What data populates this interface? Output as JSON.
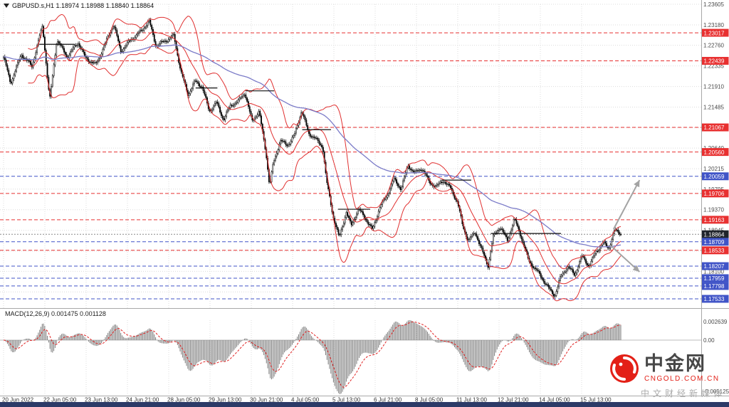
{
  "header": {
    "symbol_ohlc": "GBPUSD.s,H1 1.18974 1.18988 1.18840 1.18864"
  },
  "macd_panel": {
    "label_line": "MACD(12,26,9) 0.001475 0.001128",
    "axis_ticks": {
      "max": "0.002639",
      "zero": "0.00",
      "min": "-0.005125"
    }
  },
  "logo": {
    "title": "中金网",
    "domain": "CNGOLD.COM.CN",
    "tagline": "中文财经新媒体"
  },
  "chart_data": {
    "type": "candlestick",
    "title": "GBPUSD.s,H1",
    "timeframe": "H1",
    "ohlc": {
      "open": "1.18974",
      "high": "1.18988",
      "low": "1.18840",
      "close": "1.18864"
    },
    "x_tick_labels": [
      "20 Jun 2022",
      "22 Jun 05:00",
      "23 Jun 13:00",
      "24 Jun 21:00",
      "28 Jun 05:00",
      "29 Jun 13:00",
      "30 Jun 21:00",
      "4 Jul 05:00",
      "5 Jul 13:00",
      "6 Jul 21:00",
      "8 Jul 05:00",
      "11 Jul 13:00",
      "12 Jul 21:00",
      "14 Jul 05:00",
      "15 Jul 13:00"
    ],
    "y_axis": {
      "price_max": 1.23605,
      "price_min": 1.174,
      "grid_prices": [
        1.23605,
        1.2318,
        1.2276,
        1.22335,
        1.2191,
        1.21485,
        1.2106,
        1.2064,
        1.20215,
        1.19795,
        1.1937,
        1.18945,
        1.1852,
        1.181,
        1.17675
      ],
      "labeled": [
        "1.23605",
        "1.23180",
        "1.22760",
        "1.22335",
        "1.21910",
        "1.21485",
        "1.20640",
        "1.20215",
        "1.19795",
        "1.19370",
        "1.18945",
        "1.18100"
      ]
    },
    "levels": [
      {
        "price": 1.23017,
        "label": "1.23017",
        "color": "#e83030",
        "kind": "resistance"
      },
      {
        "price": 1.22439,
        "label": "1.22439",
        "color": "#e83030",
        "kind": "resistance"
      },
      {
        "price": 1.21067,
        "label": "1.21067",
        "color": "#e83030",
        "kind": "resistance"
      },
      {
        "price": 1.2056,
        "label": "1.20560",
        "color": "#e83030",
        "kind": "resistance"
      },
      {
        "price": 1.20059,
        "label": "1.20059",
        "color": "#4054c7",
        "kind": "support"
      },
      {
        "price": 1.19706,
        "label": "1.19706",
        "color": "#e83030",
        "kind": "resistance"
      },
      {
        "price": 1.19163,
        "label": "1.19163",
        "color": "#e83030",
        "kind": "resistance"
      },
      {
        "price": 1.18864,
        "label": "1.18864",
        "color": "#20242b",
        "kind": "bid"
      },
      {
        "price": 1.18709,
        "label": "1.18709",
        "color": "#4054c7",
        "kind": "support"
      },
      {
        "price": 1.18533,
        "label": "1.18533",
        "color": "#e83030",
        "kind": "resistance"
      },
      {
        "price": 1.18207,
        "label": "1.18207",
        "color": "#4054c7",
        "kind": "support"
      },
      {
        "price": 1.17959,
        "label": "1.17959",
        "color": "#4054c7",
        "kind": "support"
      },
      {
        "price": 1.17798,
        "label": "1.17798",
        "color": "#4054c7",
        "kind": "support"
      },
      {
        "price": 1.17533,
        "label": "1.17533",
        "color": "#4054c7",
        "kind": "support"
      }
    ],
    "candles_count": 480,
    "price_path": [
      [
        0.0,
        1.225
      ],
      [
        0.0115,
        1.2198
      ],
      [
        0.0287,
        1.226
      ],
      [
        0.046,
        1.2232
      ],
      [
        0.0632,
        1.2315
      ],
      [
        0.0747,
        1.2162
      ],
      [
        0.0862,
        1.229
      ],
      [
        0.1034,
        1.2252
      ],
      [
        0.1207,
        1.228
      ],
      [
        0.1322,
        1.225
      ],
      [
        0.1494,
        1.2238
      ],
      [
        0.1667,
        1.2285
      ],
      [
        0.1782,
        1.2318
      ],
      [
        0.1897,
        1.2262
      ],
      [
        0.2069,
        1.229
      ],
      [
        0.2241,
        1.2308
      ],
      [
        0.2356,
        1.2325
      ],
      [
        0.2471,
        1.2272
      ],
      [
        0.2644,
        1.2288
      ],
      [
        0.2759,
        1.2298
      ],
      [
        0.2874,
        1.2222
      ],
      [
        0.2989,
        1.2172
      ],
      [
        0.3103,
        1.22
      ],
      [
        0.3218,
        1.219
      ],
      [
        0.3333,
        1.2142
      ],
      [
        0.3448,
        1.216
      ],
      [
        0.3563,
        1.2122
      ],
      [
        0.3678,
        1.215
      ],
      [
        0.3793,
        1.2158
      ],
      [
        0.3908,
        1.218
      ],
      [
        0.4023,
        1.2122
      ],
      [
        0.4138,
        1.214
      ],
      [
        0.4253,
        1.2052
      ],
      [
        0.431,
        1.1982
      ],
      [
        0.4368,
        1.203
      ],
      [
        0.4483,
        1.208
      ],
      [
        0.4598,
        1.2072
      ],
      [
        0.4713,
        1.2092
      ],
      [
        0.4828,
        1.214
      ],
      [
        0.4943,
        1.2092
      ],
      [
        0.5057,
        1.2082
      ],
      [
        0.5172,
        1.2068
      ],
      [
        0.523,
        1.2
      ],
      [
        0.5345,
        1.1922
      ],
      [
        0.5437,
        1.1878
      ],
      [
        0.5552,
        1.193
      ],
      [
        0.5632,
        1.1902
      ],
      [
        0.5747,
        1.194
      ],
      [
        0.5862,
        1.1922
      ],
      [
        0.5977,
        1.1896
      ],
      [
        0.6092,
        1.194
      ],
      [
        0.6207,
        1.1962
      ],
      [
        0.6322,
        1.2
      ],
      [
        0.6437,
        1.1982
      ],
      [
        0.6552,
        1.203
      ],
      [
        0.6667,
        1.2012
      ],
      [
        0.6782,
        1.202
      ],
      [
        0.6897,
        1.1992
      ],
      [
        0.7011,
        1.1986
      ],
      [
        0.7126,
        1.2
      ],
      [
        0.7241,
        1.1982
      ],
      [
        0.7356,
        1.195
      ],
      [
        0.7437,
        1.1902
      ],
      [
        0.7529,
        1.1872
      ],
      [
        0.7644,
        1.1892
      ],
      [
        0.7759,
        1.1852
      ],
      [
        0.7851,
        1.1822
      ],
      [
        0.7931,
        1.188
      ],
      [
        0.8046,
        1.19
      ],
      [
        0.8161,
        1.1872
      ],
      [
        0.8276,
        1.192
      ],
      [
        0.8391,
        1.1882
      ],
      [
        0.8506,
        1.1832
      ],
      [
        0.8621,
        1.1812
      ],
      [
        0.8736,
        1.1792
      ],
      [
        0.8851,
        1.1772
      ],
      [
        0.8931,
        1.1762
      ],
      [
        0.9023,
        1.18
      ],
      [
        0.9138,
        1.182
      ],
      [
        0.9253,
        1.18
      ],
      [
        0.9368,
        1.184
      ],
      [
        0.9483,
        1.1822
      ],
      [
        0.9598,
        1.1852
      ],
      [
        0.9713,
        1.187
      ],
      [
        0.9805,
        1.1856
      ],
      [
        0.9897,
        1.1892
      ],
      [
        1.0,
        1.18864
      ]
    ],
    "segments": [
      {
        "x1": 0.056,
        "x2": 0.107,
        "price": 1.2278
      },
      {
        "x1": 0.279,
        "x2": 0.31,
        "price": 1.2188
      },
      {
        "x1": 0.35,
        "x2": 0.391,
        "price": 1.2182
      },
      {
        "x1": 0.431,
        "x2": 0.472,
        "price": 1.2102
      },
      {
        "x1": 0.482,
        "x2": 0.528,
        "price": 1.1938
      },
      {
        "x1": 0.629,
        "x2": 0.672,
        "price": 1.1998
      },
      {
        "x1": 0.7,
        "x2": 0.8,
        "price": 1.1888
      }
    ],
    "arrows": [
      {
        "x1": 0.875,
        "price1": 1.1897,
        "x2": 0.912,
        "price2": 1.1998,
        "dir": "up"
      },
      {
        "x1": 0.871,
        "price1": 1.1863,
        "x2": 0.912,
        "price2": 1.1809,
        "dir": "down"
      }
    ],
    "indicators": {
      "bollinger": {
        "period": 20,
        "deviation": 2,
        "color": "#e03030"
      },
      "ma_long": {
        "period": 120,
        "color": "#7b7bc8"
      },
      "macd": {
        "fast": 12,
        "slow": 26,
        "signal": 9,
        "hist_color": "#7d7d7d",
        "signal_color": "#e02020",
        "values": "0.001475 0.001128"
      }
    },
    "colors": {
      "grid": "#dcdcdc",
      "candle": "#000000",
      "arrow": "#a3a3a3",
      "axis_text": "#4a4a4a",
      "separator": "#a8a8a8"
    }
  }
}
